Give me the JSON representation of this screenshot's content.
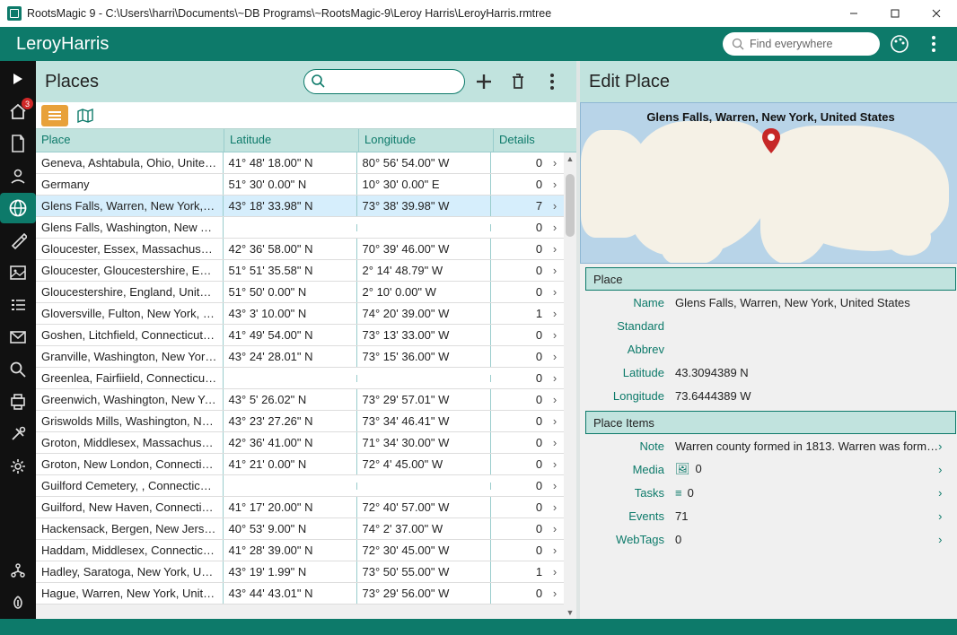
{
  "window": {
    "title": "RootsMagic 9 - C:\\Users\\harri\\Documents\\~DB Programs\\~RootsMagic-9\\Leroy Harris\\LeroyHarris.rmtree"
  },
  "header": {
    "db_name": "LeroyHarris",
    "search_placeholder": "Find everywhere"
  },
  "sidebar": {
    "home_badge": "3"
  },
  "places_pane": {
    "title": "Places",
    "columns": {
      "place": "Place",
      "lat": "Latitude",
      "lon": "Longitude",
      "det": "Details"
    }
  },
  "rows": [
    {
      "place": "Geneva, Ashtabula, Ohio, United States",
      "lat": "41° 48' 18.00\" N",
      "lon": "80° 56' 54.00\" W",
      "det": "0"
    },
    {
      "place": "Germany",
      "lat": "51° 30' 0.00\" N",
      "lon": "10° 30' 0.00\" E",
      "det": "0"
    },
    {
      "place": "Glens Falls, Warren, New York, United States",
      "lat": "43° 18' 33.98\" N",
      "lon": "73° 38' 39.98\" W",
      "det": "7",
      "selected": true
    },
    {
      "place": "Glens Falls, Washington, New York, United States",
      "lat": "",
      "lon": "",
      "det": "0"
    },
    {
      "place": "Gloucester, Essex, Massachusetts, United States",
      "lat": "42° 36' 58.00\" N",
      "lon": "70° 39' 46.00\" W",
      "det": "0"
    },
    {
      "place": "Gloucester, Gloucestershire, England, United Kingdom",
      "lat": "51° 51' 35.58\" N",
      "lon": "2° 14' 48.79\" W",
      "det": "0"
    },
    {
      "place": "Gloucestershire, England, United Kingdom",
      "lat": "51° 50' 0.00\" N",
      "lon": "2° 10' 0.00\" W",
      "det": "0"
    },
    {
      "place": "Gloversville, Fulton, New York, United States",
      "lat": "43° 3' 10.00\" N",
      "lon": "74° 20' 39.00\" W",
      "det": "1"
    },
    {
      "place": "Goshen, Litchfield, Connecticut, United States",
      "lat": "41° 49' 54.00\" N",
      "lon": "73° 13' 33.00\" W",
      "det": "0"
    },
    {
      "place": "Granville, Washington, New York, United States",
      "lat": "43° 24' 28.01\" N",
      "lon": "73° 15' 36.00\" W",
      "det": "0"
    },
    {
      "place": "Greenlea, Fairfiield, Connecticut, United States",
      "lat": "",
      "lon": "",
      "det": "0"
    },
    {
      "place": "Greenwich, Washington, New York, United States",
      "lat": "43° 5' 26.02\" N",
      "lon": "73° 29' 57.01\" W",
      "det": "0"
    },
    {
      "place": "Griswolds Mills, Washington, New York, United States",
      "lat": "43° 23' 27.26\" N",
      "lon": "73° 34' 46.41\" W",
      "det": "0"
    },
    {
      "place": "Groton, Middlesex, Massachusetts, United States",
      "lat": "42° 36' 41.00\" N",
      "lon": "71° 34' 30.00\" W",
      "det": "0"
    },
    {
      "place": "Groton, New London, Connecticut, United States",
      "lat": "41° 21' 0.00\" N",
      "lon": "72° 4' 45.00\" W",
      "det": "0"
    },
    {
      "place": "Guilford Cemetery, , Connecticut, United States",
      "lat": "",
      "lon": "",
      "det": "0"
    },
    {
      "place": "Guilford, New Haven, Connecticut, United States",
      "lat": "41° 17' 20.00\" N",
      "lon": "72° 40' 57.00\" W",
      "det": "0"
    },
    {
      "place": "Hackensack, Bergen, New Jersey, United States",
      "lat": "40° 53' 9.00\" N",
      "lon": "74° 2' 37.00\" W",
      "det": "0"
    },
    {
      "place": "Haddam, Middlesex, Connecticut, United States",
      "lat": "41° 28' 39.00\" N",
      "lon": "72° 30' 45.00\" W",
      "det": "0"
    },
    {
      "place": "Hadley, Saratoga, New York, United States",
      "lat": "43° 19' 1.99\" N",
      "lon": "73° 50' 55.00\" W",
      "det": "1"
    },
    {
      "place": "Hague, Warren, New York, United States",
      "lat": "43° 44' 43.01\" N",
      "lon": "73° 29' 56.00\" W",
      "det": "0"
    }
  ],
  "edit_pane": {
    "title": "Edit Place",
    "map_title": "Glens Falls, Warren, New York, United States",
    "section_place": "Place",
    "section_items": "Place Items",
    "fields": {
      "name_lbl": "Name",
      "name_val": "Glens Falls, Warren, New York, United States",
      "standard_lbl": "Standard",
      "standard_val": "",
      "abbrev_lbl": "Abbrev",
      "abbrev_val": "",
      "lat_lbl": "Latitude",
      "lat_val": "43.3094389 N",
      "lon_lbl": "Longitude",
      "lon_val": "73.6444389 W"
    },
    "items": {
      "note_lbl": "Note",
      "note_val": "Warren county formed in 1813.  Warren was form…",
      "media_lbl": "Media",
      "media_val": "0",
      "tasks_lbl": "Tasks",
      "tasks_val": "0",
      "events_lbl": "Events",
      "events_val": "71",
      "webtags_lbl": "WebTags",
      "webtags_val": "0"
    }
  },
  "colors": {
    "brand": "#0d7a6a",
    "pane_hdr": "#c1e3de",
    "sel_row": "#d6eefc"
  }
}
